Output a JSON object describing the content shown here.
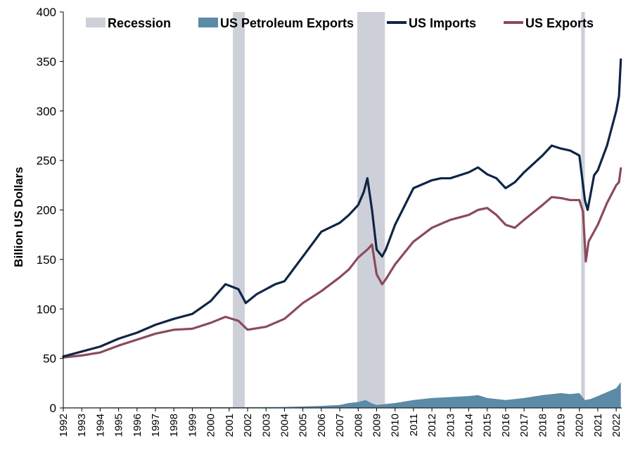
{
  "chart_data": {
    "type": "line",
    "title": "",
    "ylabel": "Billion US Dollars",
    "xlabel": "",
    "ylim": [
      0,
      400
    ],
    "xlim": [
      1992.0,
      2022.3
    ],
    "y_ticks": [
      "0",
      "50",
      "100",
      "150",
      "200",
      "250",
      "300",
      "350",
      "400"
    ],
    "x_ticks": [
      "1992",
      "1993",
      "1994",
      "1995",
      "1996",
      "1997",
      "1998",
      "1999",
      "2000",
      "2001",
      "2002",
      "2003",
      "2004",
      "2005",
      "2006",
      "2007",
      "2008",
      "2009",
      "2010",
      "2011",
      "2012",
      "2013",
      "2014",
      "2015",
      "2016",
      "2017",
      "2018",
      "2019",
      "2020",
      "2021",
      "2022"
    ],
    "grid": false,
    "legend_position": "top",
    "legend": [
      "Recession",
      "US Petroleum Exports",
      "US Imports",
      "US Exports"
    ],
    "colors": {
      "recession": "#cdd0d8",
      "petroleum": "#5b8ba6",
      "imports": "#0f2546",
      "exports": "#8b4a5c"
    },
    "recessions": [
      {
        "start": 2001.2,
        "end": 2001.85
      },
      {
        "start": 2007.95,
        "end": 2009.45
      },
      {
        "start": 2020.1,
        "end": 2020.3
      }
    ],
    "series": [
      {
        "name": "US Imports",
        "x": [
          1992.0,
          1993.0,
          1994.0,
          1995.0,
          1996.0,
          1997.0,
          1998.0,
          1999.0,
          2000.0,
          2000.8,
          2001.5,
          2001.9,
          2002.5,
          2003.0,
          2003.5,
          2004.0,
          2005.0,
          2006.0,
          2007.0,
          2007.5,
          2008.0,
          2008.3,
          2008.5,
          2008.75,
          2009.0,
          2009.3,
          2009.5,
          2010.0,
          2011.0,
          2012.0,
          2012.5,
          2013.0,
          2014.0,
          2014.5,
          2015.0,
          2015.5,
          2016.0,
          2016.5,
          2017.0,
          2018.0,
          2018.5,
          2019.0,
          2019.5,
          2020.0,
          2020.3,
          2020.45,
          2020.8,
          2021.0,
          2021.5,
          2022.0,
          2022.15,
          2022.25
        ],
        "values": [
          52,
          57,
          62,
          70,
          76,
          84,
          90,
          95,
          108,
          125,
          120,
          106,
          115,
          120,
          125,
          128,
          153,
          178,
          187,
          195,
          205,
          218,
          232,
          200,
          160,
          153,
          160,
          185,
          222,
          230,
          232,
          232,
          238,
          243,
          236,
          232,
          222,
          228,
          238,
          255,
          265,
          262,
          260,
          255,
          210,
          200,
          235,
          240,
          265,
          300,
          315,
          352
        ]
      },
      {
        "name": "US Exports",
        "x": [
          1992.0,
          1993.0,
          1994.0,
          1995.0,
          1996.0,
          1997.0,
          1998.0,
          1999.0,
          2000.0,
          2000.8,
          2001.5,
          2002.0,
          2003.0,
          2004.0,
          2005.0,
          2006.0,
          2007.0,
          2007.5,
          2008.0,
          2008.5,
          2008.75,
          2009.0,
          2009.3,
          2009.5,
          2010.0,
          2011.0,
          2012.0,
          2013.0,
          2014.0,
          2014.5,
          2015.0,
          2015.5,
          2016.0,
          2016.5,
          2017.0,
          2018.0,
          2018.5,
          2019.0,
          2019.5,
          2020.0,
          2020.2,
          2020.35,
          2020.5,
          2021.0,
          2021.5,
          2022.0,
          2022.15,
          2022.25
        ],
        "values": [
          51,
          53,
          56,
          63,
          69,
          75,
          79,
          80,
          86,
          92,
          88,
          79,
          82,
          90,
          106,
          118,
          132,
          140,
          152,
          160,
          165,
          135,
          125,
          130,
          145,
          168,
          182,
          190,
          195,
          200,
          202,
          195,
          185,
          182,
          190,
          205,
          213,
          212,
          210,
          210,
          198,
          148,
          168,
          185,
          207,
          225,
          228,
          242
        ]
      },
      {
        "name": "US Petroleum Exports",
        "x": [
          1992.0,
          1995.0,
          2000.0,
          2002.0,
          2004.0,
          2006.0,
          2007.0,
          2007.5,
          2008.0,
          2008.4,
          2008.7,
          2009.0,
          2009.5,
          2010.0,
          2011.0,
          2012.0,
          2013.0,
          2014.0,
          2014.5,
          2015.0,
          2016.0,
          2017.0,
          2018.0,
          2019.0,
          2019.5,
          2020.0,
          2020.3,
          2020.6,
          2021.0,
          2021.5,
          2022.0,
          2022.25
        ],
        "values": [
          0.5,
          0.6,
          0.8,
          0.8,
          1,
          2,
          3,
          5,
          6,
          8,
          5,
          3,
          4,
          5,
          8,
          10,
          11,
          12,
          13,
          10,
          8,
          10,
          13,
          15,
          14,
          15,
          8,
          9,
          12,
          16,
          20,
          26
        ]
      }
    ]
  }
}
